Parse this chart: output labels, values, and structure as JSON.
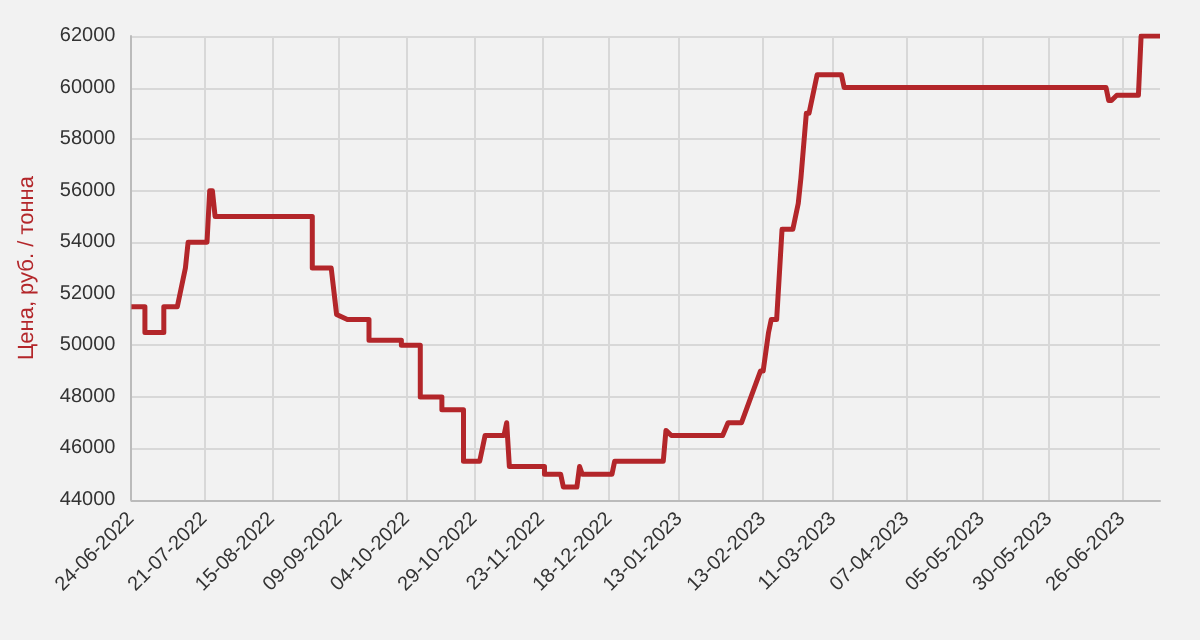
{
  "chart_data": {
    "type": "line",
    "ylabel": "Цена, руб. / тонна",
    "x": [
      "2022-06-24",
      "2022-06-29",
      "2022-06-29",
      "2022-07-06",
      "2022-07-06",
      "2022-07-11",
      "2022-07-14",
      "2022-07-15",
      "2022-07-22",
      "2022-07-23",
      "2022-07-24",
      "2022-07-25",
      "2022-08-30",
      "2022-08-30",
      "2022-09-06",
      "2022-09-08",
      "2022-09-12",
      "2022-09-20",
      "2022-09-20",
      "2022-10-02",
      "2022-10-02",
      "2022-10-09",
      "2022-10-09",
      "2022-10-17",
      "2022-10-17",
      "2022-10-25",
      "2022-10-25",
      "2022-10-31",
      "2022-11-01",
      "2022-11-02",
      "2022-11-09",
      "2022-11-10",
      "2022-11-11",
      "2022-11-24",
      "2022-11-24",
      "2022-11-30",
      "2022-12-01",
      "2022-12-06",
      "2022-12-07",
      "2022-12-08",
      "2022-12-19",
      "2022-12-20",
      "2023-01-07",
      "2023-01-08",
      "2023-01-10",
      "2023-01-29",
      "2023-01-31",
      "2023-02-05",
      "2023-02-12",
      "2023-02-13",
      "2023-02-15",
      "2023-02-16",
      "2023-02-18",
      "2023-02-20",
      "2023-02-24",
      "2023-02-26",
      "2023-02-27",
      "2023-03-01",
      "2023-03-02",
      "2023-03-05",
      "2023-03-14",
      "2023-03-15",
      "2023-06-20",
      "2023-06-21",
      "2023-06-22",
      "2023-06-24",
      "2023-07-02",
      "2023-07-03",
      "2023-07-10"
    ],
    "series": [
      {
        "color": "#b3262a",
        "values": [
          51500,
          51500,
          50500,
          50500,
          51500,
          51500,
          53000,
          54000,
          54000,
          56000,
          56000,
          55000,
          55000,
          53000,
          53000,
          51200,
          51000,
          51000,
          50200,
          50200,
          50000,
          50000,
          48000,
          48000,
          47500,
          47500,
          45500,
          45500,
          46000,
          46500,
          46500,
          47000,
          45300,
          45300,
          45000,
          45000,
          44500,
          44500,
          45300,
          45000,
          45000,
          45500,
          45500,
          46700,
          46500,
          46500,
          47000,
          47000,
          49000,
          49000,
          50500,
          51000,
          51000,
          54500,
          54500,
          55500,
          56500,
          59000,
          59000,
          60500,
          60500,
          60000,
          60000,
          59500,
          59500,
          59700,
          59700,
          62000,
          62000
        ]
      }
    ],
    "xlim": [
      "2022-06-24",
      "2023-07-10"
    ],
    "xticks": [
      {
        "value": "2022-06-24",
        "label": "24-06-2022"
      },
      {
        "value": "2022-07-21",
        "label": "21-07-2022"
      },
      {
        "value": "2022-08-15",
        "label": "15-08-2022"
      },
      {
        "value": "2022-09-09",
        "label": "09-09-2022"
      },
      {
        "value": "2022-10-04",
        "label": "04-10-2022"
      },
      {
        "value": "2022-10-29",
        "label": "29-10-2022"
      },
      {
        "value": "2022-11-23",
        "label": "23-11-2022"
      },
      {
        "value": "2022-12-18",
        "label": "18-12-2022"
      },
      {
        "value": "2023-01-13",
        "label": "13-01-2023"
      },
      {
        "value": "2023-02-13",
        "label": "13-02-2023"
      },
      {
        "value": "2023-03-11",
        "label": "11-03-2023"
      },
      {
        "value": "2023-04-07",
        "label": "07-04-2023"
      },
      {
        "value": "2023-05-05",
        "label": "05-05-2023"
      },
      {
        "value": "2023-05-30",
        "label": "30-05-2023"
      },
      {
        "value": "2023-06-26",
        "label": "26-06-2023"
      }
    ],
    "ylim": [
      44000,
      62000
    ],
    "yticks": [
      44000,
      46000,
      48000,
      50000,
      52000,
      54000,
      56000,
      58000,
      60000,
      62000
    ],
    "grid": true,
    "marker": "none",
    "line_style": "solid"
  }
}
